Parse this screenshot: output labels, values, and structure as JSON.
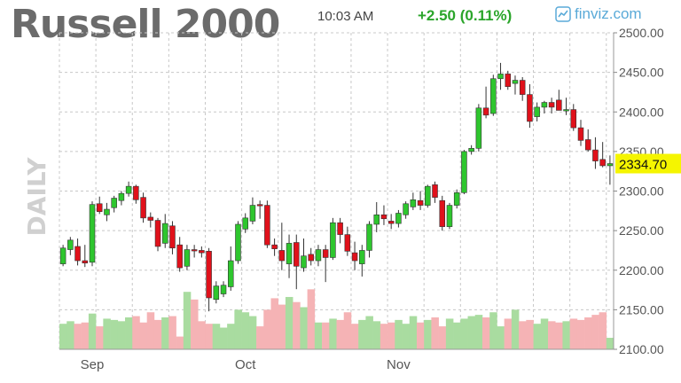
{
  "header": {
    "title": "Russell 2000",
    "time": "10:03 AM",
    "change": "+2.50 (0.11%)",
    "brand": "finviz.com",
    "brand_icon": "finviz-logo-icon"
  },
  "chart_data": {
    "type": "candlestick",
    "timeframe_label": "DAILY",
    "last_price_label": "2334.70",
    "last_price": 2334.7,
    "ylim": [
      2100,
      2500
    ],
    "y_ticks": [
      "2100.00",
      "2150.00",
      "2200.00",
      "2250.00",
      "2300.00",
      "2350.00",
      "2400.00",
      "2450.00",
      "2500.00"
    ],
    "x_ticks": [
      "Sep",
      "Oct",
      "Nov"
    ],
    "grid": true,
    "colors": {
      "up": "#2ec62e",
      "down": "#e0111b",
      "volume_up": "#a9dca0",
      "volume_down": "#f5b3b5",
      "grid": "#c8c8c8",
      "last_price_bg": "#f5f500"
    },
    "candles": [
      {
        "o": 2208,
        "h": 2232,
        "l": 2205,
        "c": 2228
      },
      {
        "o": 2226,
        "h": 2242,
        "l": 2219,
        "c": 2238
      },
      {
        "o": 2230,
        "h": 2240,
        "l": 2206,
        "c": 2212
      },
      {
        "o": 2212,
        "h": 2232,
        "l": 2204,
        "c": 2209
      },
      {
        "o": 2210,
        "h": 2287,
        "l": 2205,
        "c": 2283
      },
      {
        "o": 2284,
        "h": 2293,
        "l": 2271,
        "c": 2274
      },
      {
        "o": 2270,
        "h": 2285,
        "l": 2262,
        "c": 2277
      },
      {
        "o": 2279,
        "h": 2294,
        "l": 2273,
        "c": 2291
      },
      {
        "o": 2288,
        "h": 2300,
        "l": 2282,
        "c": 2297
      },
      {
        "o": 2297,
        "h": 2312,
        "l": 2293,
        "c": 2306
      },
      {
        "o": 2306,
        "h": 2308,
        "l": 2284,
        "c": 2289
      },
      {
        "o": 2292,
        "h": 2298,
        "l": 2260,
        "c": 2266
      },
      {
        "o": 2267,
        "h": 2273,
        "l": 2254,
        "c": 2263
      },
      {
        "o": 2263,
        "h": 2266,
        "l": 2224,
        "c": 2230
      },
      {
        "o": 2234,
        "h": 2271,
        "l": 2228,
        "c": 2259
      },
      {
        "o": 2256,
        "h": 2262,
        "l": 2220,
        "c": 2228
      },
      {
        "o": 2232,
        "h": 2242,
        "l": 2198,
        "c": 2203
      },
      {
        "o": 2205,
        "h": 2232,
        "l": 2200,
        "c": 2226
      },
      {
        "o": 2226,
        "h": 2232,
        "l": 2216,
        "c": 2225
      },
      {
        "o": 2225,
        "h": 2230,
        "l": 2216,
        "c": 2222
      },
      {
        "o": 2224,
        "h": 2228,
        "l": 2148,
        "c": 2165
      },
      {
        "o": 2163,
        "h": 2186,
        "l": 2158,
        "c": 2180
      },
      {
        "o": 2170,
        "h": 2186,
        "l": 2166,
        "c": 2181
      },
      {
        "o": 2179,
        "h": 2230,
        "l": 2174,
        "c": 2212
      },
      {
        "o": 2212,
        "h": 2262,
        "l": 2208,
        "c": 2258
      },
      {
        "o": 2252,
        "h": 2272,
        "l": 2247,
        "c": 2266
      },
      {
        "o": 2262,
        "h": 2292,
        "l": 2258,
        "c": 2282
      },
      {
        "o": 2283,
        "h": 2288,
        "l": 2265,
        "c": 2282
      },
      {
        "o": 2282,
        "h": 2288,
        "l": 2228,
        "c": 2232
      },
      {
        "o": 2232,
        "h": 2240,
        "l": 2218,
        "c": 2227
      },
      {
        "o": 2225,
        "h": 2260,
        "l": 2200,
        "c": 2212
      },
      {
        "o": 2208,
        "h": 2245,
        "l": 2190,
        "c": 2234
      },
      {
        "o": 2235,
        "h": 2245,
        "l": 2176,
        "c": 2205
      },
      {
        "o": 2203,
        "h": 2240,
        "l": 2198,
        "c": 2218
      },
      {
        "o": 2220,
        "h": 2228,
        "l": 2206,
        "c": 2212
      },
      {
        "o": 2212,
        "h": 2232,
        "l": 2205,
        "c": 2226
      },
      {
        "o": 2226,
        "h": 2232,
        "l": 2185,
        "c": 2216
      },
      {
        "o": 2216,
        "h": 2266,
        "l": 2213,
        "c": 2260
      },
      {
        "o": 2260,
        "h": 2266,
        "l": 2234,
        "c": 2245
      },
      {
        "o": 2245,
        "h": 2255,
        "l": 2218,
        "c": 2224
      },
      {
        "o": 2222,
        "h": 2236,
        "l": 2200,
        "c": 2212
      },
      {
        "o": 2208,
        "h": 2232,
        "l": 2192,
        "c": 2225
      },
      {
        "o": 2225,
        "h": 2262,
        "l": 2216,
        "c": 2258
      },
      {
        "o": 2258,
        "h": 2286,
        "l": 2248,
        "c": 2270
      },
      {
        "o": 2270,
        "h": 2282,
        "l": 2257,
        "c": 2265
      },
      {
        "o": 2262,
        "h": 2271,
        "l": 2252,
        "c": 2259
      },
      {
        "o": 2259,
        "h": 2276,
        "l": 2254,
        "c": 2272
      },
      {
        "o": 2270,
        "h": 2287,
        "l": 2265,
        "c": 2284
      },
      {
        "o": 2280,
        "h": 2298,
        "l": 2276,
        "c": 2289
      },
      {
        "o": 2288,
        "h": 2300,
        "l": 2276,
        "c": 2282
      },
      {
        "o": 2282,
        "h": 2308,
        "l": 2279,
        "c": 2306
      },
      {
        "o": 2308,
        "h": 2312,
        "l": 2285,
        "c": 2292
      },
      {
        "o": 2288,
        "h": 2294,
        "l": 2250,
        "c": 2255
      },
      {
        "o": 2255,
        "h": 2285,
        "l": 2252,
        "c": 2282
      },
      {
        "o": 2282,
        "h": 2302,
        "l": 2278,
        "c": 2298
      },
      {
        "o": 2298,
        "h": 2352,
        "l": 2296,
        "c": 2350
      },
      {
        "o": 2350,
        "h": 2358,
        "l": 2346,
        "c": 2354
      },
      {
        "o": 2354,
        "h": 2410,
        "l": 2350,
        "c": 2405
      },
      {
        "o": 2405,
        "h": 2432,
        "l": 2392,
        "c": 2396
      },
      {
        "o": 2398,
        "h": 2447,
        "l": 2395,
        "c": 2442
      },
      {
        "o": 2442,
        "h": 2462,
        "l": 2428,
        "c": 2448
      },
      {
        "o": 2448,
        "h": 2452,
        "l": 2428,
        "c": 2432
      },
      {
        "o": 2436,
        "h": 2446,
        "l": 2422,
        "c": 2440
      },
      {
        "o": 2440,
        "h": 2444,
        "l": 2414,
        "c": 2422
      },
      {
        "o": 2422,
        "h": 2435,
        "l": 2380,
        "c": 2388
      },
      {
        "o": 2394,
        "h": 2412,
        "l": 2388,
        "c": 2406
      },
      {
        "o": 2406,
        "h": 2414,
        "l": 2398,
        "c": 2412
      },
      {
        "o": 2412,
        "h": 2418,
        "l": 2398,
        "c": 2406
      },
      {
        "o": 2415,
        "h": 2428,
        "l": 2405,
        "c": 2402
      },
      {
        "o": 2402,
        "h": 2418,
        "l": 2396,
        "c": 2403
      },
      {
        "o": 2403,
        "h": 2410,
        "l": 2376,
        "c": 2380
      },
      {
        "o": 2380,
        "h": 2390,
        "l": 2357,
        "c": 2364
      },
      {
        "o": 2365,
        "h": 2378,
        "l": 2350,
        "c": 2352
      },
      {
        "o": 2352,
        "h": 2368,
        "l": 2328,
        "c": 2338
      },
      {
        "o": 2340,
        "h": 2362,
        "l": 2330,
        "c": 2332
      },
      {
        "o": 2332,
        "h": 2345,
        "l": 2308,
        "c": 2334.7
      }
    ],
    "volume": [
      0.4,
      0.44,
      0.4,
      0.42,
      0.56,
      0.36,
      0.48,
      0.46,
      0.44,
      0.5,
      0.52,
      0.42,
      0.58,
      0.46,
      0.5,
      0.52,
      0.2,
      0.9,
      0.78,
      0.44,
      0.4,
      0.4,
      0.34,
      0.4,
      0.62,
      0.58,
      0.52,
      0.36,
      0.62,
      0.8,
      0.7,
      0.82,
      0.74,
      0.66,
      0.94,
      0.42,
      0.42,
      0.48,
      0.46,
      0.58,
      0.4,
      0.46,
      0.52,
      0.44,
      0.4,
      0.42,
      0.46,
      0.4,
      0.52,
      0.42,
      0.46,
      0.5,
      0.36,
      0.48,
      0.42,
      0.48,
      0.52,
      0.54,
      0.5,
      0.58,
      0.36,
      0.48,
      0.62,
      0.44,
      0.46,
      0.4,
      0.48,
      0.44,
      0.42,
      0.44,
      0.48,
      0.46,
      0.5,
      0.54,
      0.58,
      0.18
    ]
  }
}
